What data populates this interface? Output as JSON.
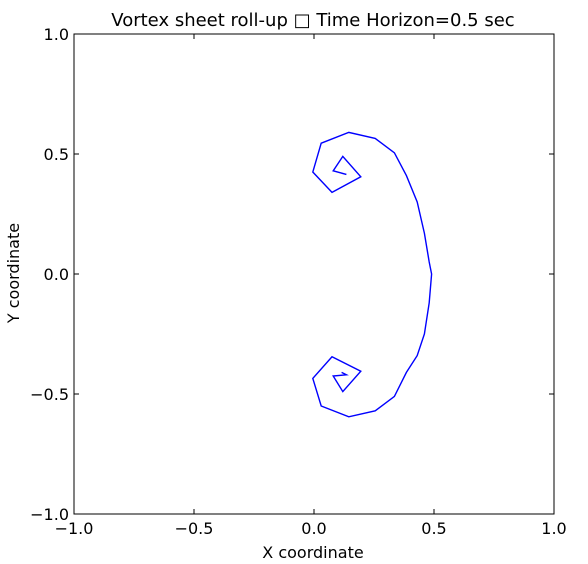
{
  "chart_data": {
    "type": "line",
    "title": "Vortex sheet roll-up □ Time Horizon=0.5 sec",
    "xlabel": "X coordinate",
    "ylabel": "Y coordinate",
    "xlim": [
      -1.0,
      1.0
    ],
    "ylim": [
      -1.0,
      1.0
    ],
    "xticks": [
      -1.0,
      -0.5,
      0.0,
      0.5,
      1.0
    ],
    "yticks": [
      -1.0,
      -0.5,
      0.0,
      0.5,
      1.0
    ],
    "xtick_labels": [
      "−1.0",
      "−0.5",
      "0.0",
      "0.5",
      "1.0"
    ],
    "ytick_labels": [
      "−1.0",
      "−0.5",
      "0.0",
      "0.5",
      "1.0"
    ],
    "grid": false,
    "series": [
      {
        "color": "#0000ff",
        "x": [
          0.115,
          0.135,
          0.08,
          0.12,
          0.195,
          0.075,
          -0.005,
          0.03,
          0.145,
          0.255,
          0.335,
          0.385,
          0.43,
          0.46,
          0.48,
          0.49,
          0.48,
          0.46,
          0.43,
          0.385,
          0.335,
          0.255,
          0.145,
          0.03,
          -0.005,
          0.075,
          0.195,
          0.12,
          0.08,
          0.135,
          0.115
        ],
        "y": [
          0.42,
          0.415,
          0.43,
          0.49,
          0.405,
          0.34,
          0.425,
          0.545,
          0.59,
          0.565,
          0.505,
          0.41,
          0.3,
          0.17,
          0.05,
          0.0,
          -0.12,
          -0.25,
          -0.34,
          -0.41,
          -0.51,
          -0.57,
          -0.595,
          -0.55,
          -0.435,
          -0.345,
          -0.405,
          -0.49,
          -0.425,
          -0.42,
          -0.41
        ]
      }
    ]
  }
}
